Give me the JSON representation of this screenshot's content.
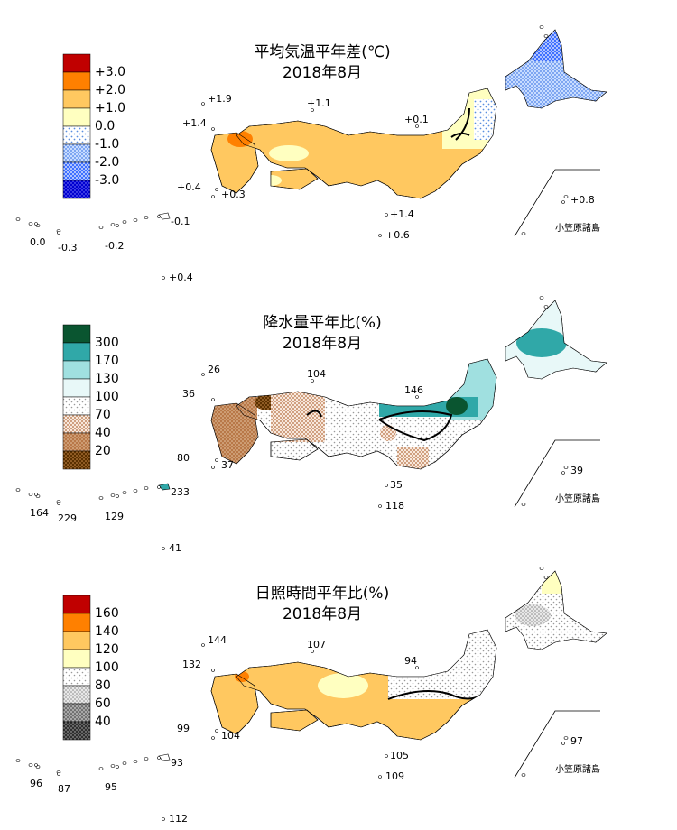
{
  "panels": [
    {
      "title": "平均気温平年差(℃)",
      "date": "2018年8月",
      "legend": [
        "+3.0",
        "+2.0",
        "+1.0",
        "0.0",
        "-1.0",
        "-2.0",
        "-3.0"
      ],
      "stations": [
        "+1.9",
        "+1.1",
        "+1.4",
        "+0.1",
        "+0.4",
        "+0.3",
        "+0.8",
        "+1.4",
        "+0.6",
        "-0.1",
        "0.0",
        "-0.3",
        "-0.2",
        "+0.4"
      ],
      "islands_label": "小笠原諸島"
    },
    {
      "title": "降水量平年比(%)",
      "date": "2018年8月",
      "legend": [
        "300",
        "170",
        "130",
        "100",
        "70",
        "40",
        "20"
      ],
      "stations": [
        "26",
        "104",
        "36",
        "146",
        "80",
        "37",
        "39",
        "35",
        "118",
        "233",
        "164",
        "229",
        "129",
        "41"
      ],
      "islands_label": "小笠原諸島"
    },
    {
      "title": "日照時間平年比(%)",
      "date": "2018年8月",
      "legend": [
        "160",
        "140",
        "120",
        "100",
        "80",
        "60",
        "40"
      ],
      "stations": [
        "144",
        "107",
        "132",
        "94",
        "99",
        "104",
        "97",
        "105",
        "109",
        "93",
        "96",
        "87",
        "95",
        "112"
      ],
      "islands_label": "小笠原諸島"
    }
  ]
}
